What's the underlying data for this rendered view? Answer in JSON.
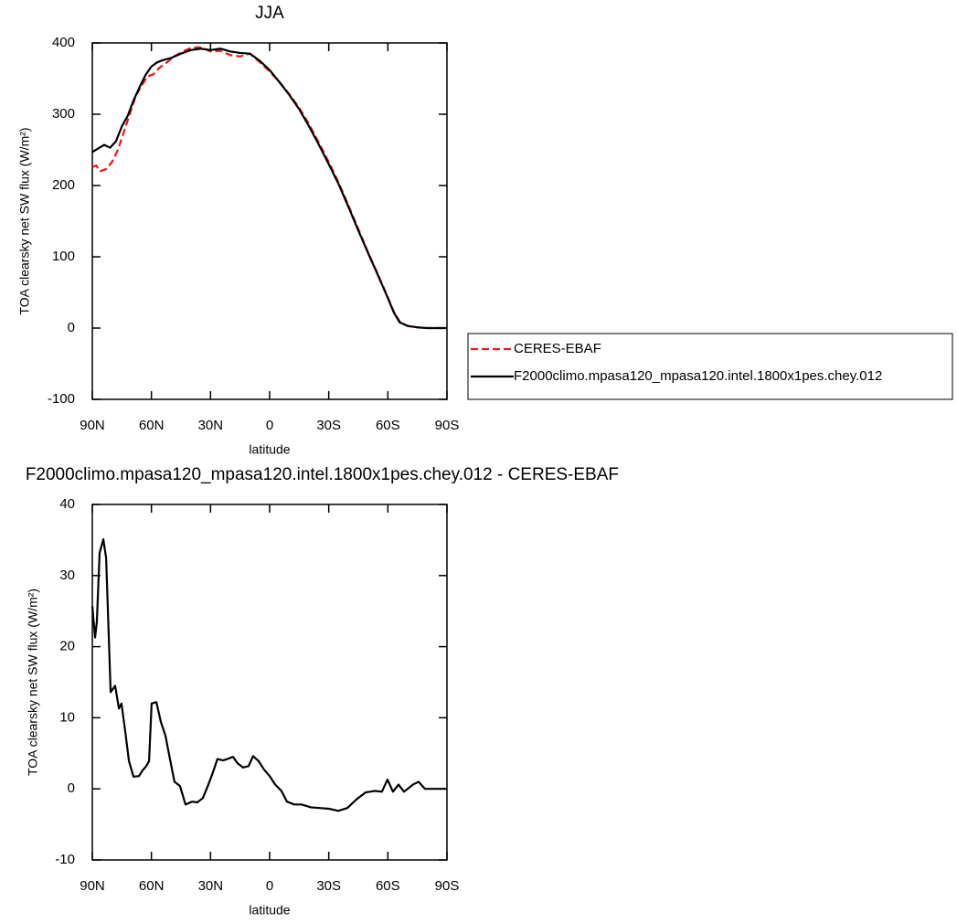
{
  "chart_data": [
    {
      "type": "line",
      "title": "JJA",
      "xlabel": "latitude",
      "ylabel": "TOA clearsky net SW flux (W/m²)",
      "xlim": [
        90,
        -90
      ],
      "ylim": [
        -100,
        400
      ],
      "xticks": [
        {
          "value": 90,
          "label": "90N"
        },
        {
          "value": 60,
          "label": "60N"
        },
        {
          "value": 30,
          "label": "30N"
        },
        0,
        {
          "value": -30,
          "label": "30S"
        },
        {
          "value": -60,
          "label": "60S"
        },
        {
          "value": -90,
          "label": "90S"
        }
      ],
      "yticks": [
        -100,
        0,
        100,
        200,
        300,
        400
      ],
      "legend": "right",
      "series": [
        {
          "name": "CERES-EBAF",
          "color": "#e41a1c",
          "line_style": "dashed",
          "x": [
            90,
            88,
            86,
            83,
            80,
            77,
            74,
            71,
            68,
            65,
            62,
            59,
            56,
            52,
            48,
            44,
            40,
            36,
            33,
            30,
            25,
            20,
            15,
            10,
            5,
            0,
            -5,
            -10,
            -15,
            -20,
            -25,
            -30,
            -35,
            -40,
            -45,
            -50,
            -55,
            -60,
            -63,
            -66,
            -70,
            -75,
            -80,
            -90
          ],
          "values": [
            226,
            228,
            220,
            223,
            233,
            250,
            275,
            300,
            325,
            340,
            353,
            356,
            365,
            373,
            382,
            388,
            393,
            394,
            392,
            388,
            389,
            383,
            381,
            385,
            373,
            360,
            345,
            328,
            309,
            286,
            260,
            233,
            204,
            172,
            139,
            106,
            75,
            43,
            23,
            9,
            3,
            1,
            0,
            0
          ]
        },
        {
          "name": "F2000climo.mpasa120_mpasa120.intel.1800x1pes.chey.012",
          "color": "#000000",
          "line_style": "solid",
          "x": [
            90,
            87,
            84,
            81,
            78,
            75,
            72,
            69,
            66,
            63,
            60,
            57,
            54,
            50,
            45,
            40,
            35,
            30,
            25,
            20,
            15,
            10,
            5,
            0,
            -5,
            -10,
            -15,
            -20,
            -25,
            -30,
            -35,
            -40,
            -45,
            -50,
            -55,
            -60,
            -63,
            -66,
            -70,
            -75,
            -80,
            -90
          ],
          "values": [
            247,
            252,
            257,
            253,
            262,
            283,
            298,
            320,
            338,
            355,
            367,
            373,
            376,
            379,
            385,
            390,
            392,
            390,
            392,
            388,
            386,
            385,
            375,
            362,
            345,
            327,
            307,
            283,
            257,
            230,
            202,
            170,
            137,
            105,
            74,
            42,
            22,
            8,
            3,
            1,
            0,
            0
          ]
        }
      ]
    },
    {
      "type": "line",
      "title": "F2000climo.mpasa120_mpasa120.intel.1800x1pes.chey.012 - CERES-EBAF",
      "xlabel": "latitude",
      "ylabel": "TOA clearsky net SW flux (W/m²)",
      "xlim": [
        90,
        -90
      ],
      "ylim": [
        -10,
        40
      ],
      "xticks": [
        {
          "value": 90,
          "label": "90N"
        },
        {
          "value": 60,
          "label": "60N"
        },
        {
          "value": 30,
          "label": "30N"
        },
        0,
        {
          "value": -30,
          "label": "30S"
        },
        {
          "value": -60,
          "label": "60S"
        },
        {
          "value": -90,
          "label": "90S"
        }
      ],
      "yticks": [
        -10,
        0,
        10,
        20,
        30,
        40
      ],
      "series": [
        {
          "color": "#000000",
          "line_style": "solid",
          "x": [
            90,
            88.6,
            87.7,
            86.3,
            84.4,
            83,
            80.7,
            78.4,
            76.5,
            75.2,
            73.3,
            71.4,
            69.1,
            66.3,
            64.5,
            62.6,
            61.2,
            59.9,
            57.5,
            55.2,
            52.9,
            50.6,
            48.3,
            45.5,
            42.7,
            39.4,
            36.7,
            33.9,
            31.1,
            28.8,
            26.5,
            23.7,
            21.4,
            18.6,
            16.3,
            13.5,
            10.7,
            8.4,
            5.6,
            2.8,
            0,
            -2.8,
            -6,
            -8.8,
            -12.5,
            -16.2,
            -20.9,
            -25.5,
            -30.1,
            -34.8,
            -39.4,
            -44,
            -48.7,
            -53.3,
            -57,
            -59.8,
            -62.6,
            -65.4,
            -68.2,
            -72.8,
            -75.6,
            -78.8,
            -90
          ],
          "values": [
            25.7,
            21.3,
            23.5,
            33.2,
            35.1,
            32.5,
            13.6,
            14.5,
            11.3,
            12,
            8.1,
            3.9,
            1.7,
            1.8,
            2.6,
            3.2,
            3.9,
            12,
            12.2,
            9.4,
            7.5,
            4.2,
            1,
            0.4,
            -2.2,
            -1.8,
            -1.9,
            -1.3,
            0.6,
            2.3,
            4.2,
            4,
            4.2,
            4.5,
            3.6,
            3,
            3.2,
            4.6,
            3.9,
            2.7,
            1.8,
            0.6,
            -0.3,
            -1.8,
            -2.2,
            -2.2,
            -2.6,
            -2.7,
            -2.8,
            -3.1,
            -2.7,
            -1.5,
            -0.5,
            -0.3,
            -0.4,
            1.3,
            -0.4,
            0.6,
            -0.4,
            0.6,
            1,
            0,
            0
          ]
        }
      ]
    }
  ]
}
